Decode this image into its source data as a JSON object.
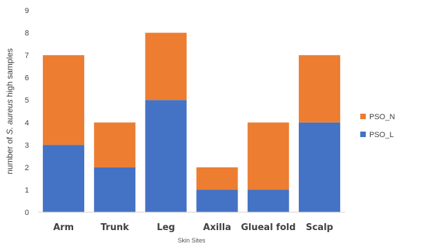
{
  "chart_data": {
    "type": "bar",
    "stacked": true,
    "categories": [
      "Arm",
      "Trunk",
      "Leg",
      "Axilla",
      "Glueal fold",
      "Scalp"
    ],
    "series": [
      {
        "name": "PSO_L",
        "values": [
          3,
          2,
          5,
          1,
          1,
          4
        ],
        "color": "#4472C4"
      },
      {
        "name": "PSO_N",
        "values": [
          4,
          2,
          3,
          1,
          3,
          3
        ],
        "color": "#ED7D31"
      }
    ],
    "title": "",
    "xlabel": "Skin Sites",
    "ylabel_prefix": "number of ",
    "ylabel_italic": "S. aureus",
    "ylabel_suffix": " high samples",
    "ylim": [
      0,
      9
    ],
    "yticks": [
      0,
      1,
      2,
      3,
      4,
      5,
      6,
      7,
      8,
      9
    ],
    "grid": false,
    "legend_position": "right",
    "legend_order": [
      "PSO_N",
      "PSO_L"
    ]
  }
}
